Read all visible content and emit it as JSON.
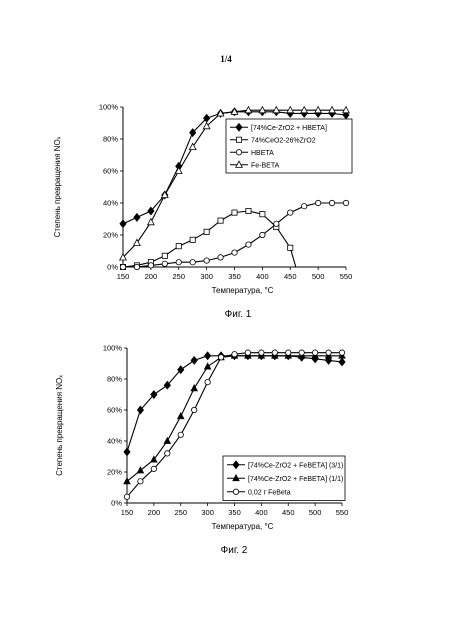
{
  "page": {
    "number": "1/4"
  },
  "captions": [
    "Фиг. 1",
    "Фиг. 2"
  ],
  "chart_data": [
    {
      "type": "line",
      "title": "",
      "xlabel": "Температура, °C",
      "ylabel": "Степень превращения NOₓ",
      "xlim": [
        150,
        550
      ],
      "ylim": [
        0,
        100
      ],
      "xticks": [
        150,
        200,
        250,
        300,
        350,
        400,
        450,
        500,
        550
      ],
      "yticks": [
        "0%",
        "20%",
        "40%",
        "60%",
        "80%",
        "100%"
      ],
      "legend": "top-right",
      "series": [
        {
          "name": "[74%Ce-ZrO2 + HBETA]",
          "marker": "diamond",
          "x": [
            150,
            175,
            200,
            225,
            250,
            275,
            300,
            325,
            350,
            375,
            400,
            425,
            450,
            475,
            500,
            525,
            550
          ],
          "y": [
            27,
            31,
            35,
            45,
            63,
            84,
            93,
            96,
            97,
            97,
            97,
            97,
            96,
            96,
            96,
            96,
            95
          ]
        },
        {
          "name": "74%CeO2-26%ZrO2",
          "marker": "square",
          "x": [
            150,
            175,
            200,
            225,
            250,
            275,
            300,
            325,
            350,
            375,
            400,
            425,
            450,
            460
          ],
          "y": [
            0,
            1,
            3,
            7,
            13,
            17,
            22,
            29,
            34,
            35,
            33,
            25,
            12,
            0
          ]
        },
        {
          "name": "HBETA",
          "marker": "circle",
          "x": [
            150,
            175,
            200,
            225,
            250,
            275,
            300,
            325,
            350,
            375,
            400,
            425,
            450,
            475,
            500,
            525,
            550
          ],
          "y": [
            0,
            0,
            1,
            2,
            3,
            3,
            4,
            6,
            9,
            14,
            20,
            27,
            34,
            38,
            40,
            40,
            40
          ]
        },
        {
          "name": "Fe-BETA",
          "marker": "triangle-open",
          "x": [
            150,
            175,
            200,
            225,
            250,
            275,
            300,
            325,
            350,
            375,
            400,
            425,
            450,
            475,
            500,
            525,
            550
          ],
          "y": [
            6,
            15,
            28,
            45,
            60,
            75,
            88,
            96,
            97,
            98,
            98,
            98,
            98,
            98,
            98,
            98,
            98
          ]
        }
      ]
    },
    {
      "type": "line",
      "title": "",
      "xlabel": "Температура, °C",
      "ylabel": "Степень превращения NOₓ",
      "xlim": [
        150,
        550
      ],
      "ylim": [
        0,
        100
      ],
      "xticks": [
        150,
        200,
        250,
        300,
        350,
        400,
        450,
        500,
        550
      ],
      "yticks": [
        "0%",
        "20%",
        "40%",
        "60%",
        "80%",
        "100%"
      ],
      "legend": "bottom-right",
      "series": [
        {
          "name": "[74%Ce-ZrO2 + FeBETA] (3/1)",
          "marker": "diamond",
          "x": [
            150,
            175,
            200,
            225,
            250,
            275,
            300,
            325,
            350,
            375,
            400,
            425,
            450,
            475,
            500,
            525,
            550
          ],
          "y": [
            33,
            60,
            70,
            76,
            86,
            92,
            95,
            95,
            95,
            95,
            95,
            95,
            95,
            94,
            93,
            92,
            91
          ]
        },
        {
          "name": "[74%Ce-ZrO2 + FeBETA] (1/1)",
          "marker": "triangle",
          "x": [
            150,
            175,
            200,
            225,
            250,
            275,
            300,
            325,
            350,
            375,
            400,
            425,
            450,
            475,
            500,
            525,
            550
          ],
          "y": [
            14,
            21,
            28,
            40,
            56,
            74,
            88,
            94,
            95,
            95,
            95,
            95,
            95,
            95,
            95,
            95,
            95
          ]
        },
        {
          "name": "0,02 г FeBeta",
          "marker": "circle",
          "x": [
            150,
            175,
            200,
            225,
            250,
            275,
            300,
            325,
            350,
            375,
            400,
            425,
            450,
            475,
            500,
            525,
            550
          ],
          "y": [
            4,
            14,
            22,
            32,
            44,
            60,
            78,
            94,
            96,
            97,
            97,
            97,
            97,
            97,
            97,
            97,
            97
          ]
        }
      ]
    }
  ]
}
